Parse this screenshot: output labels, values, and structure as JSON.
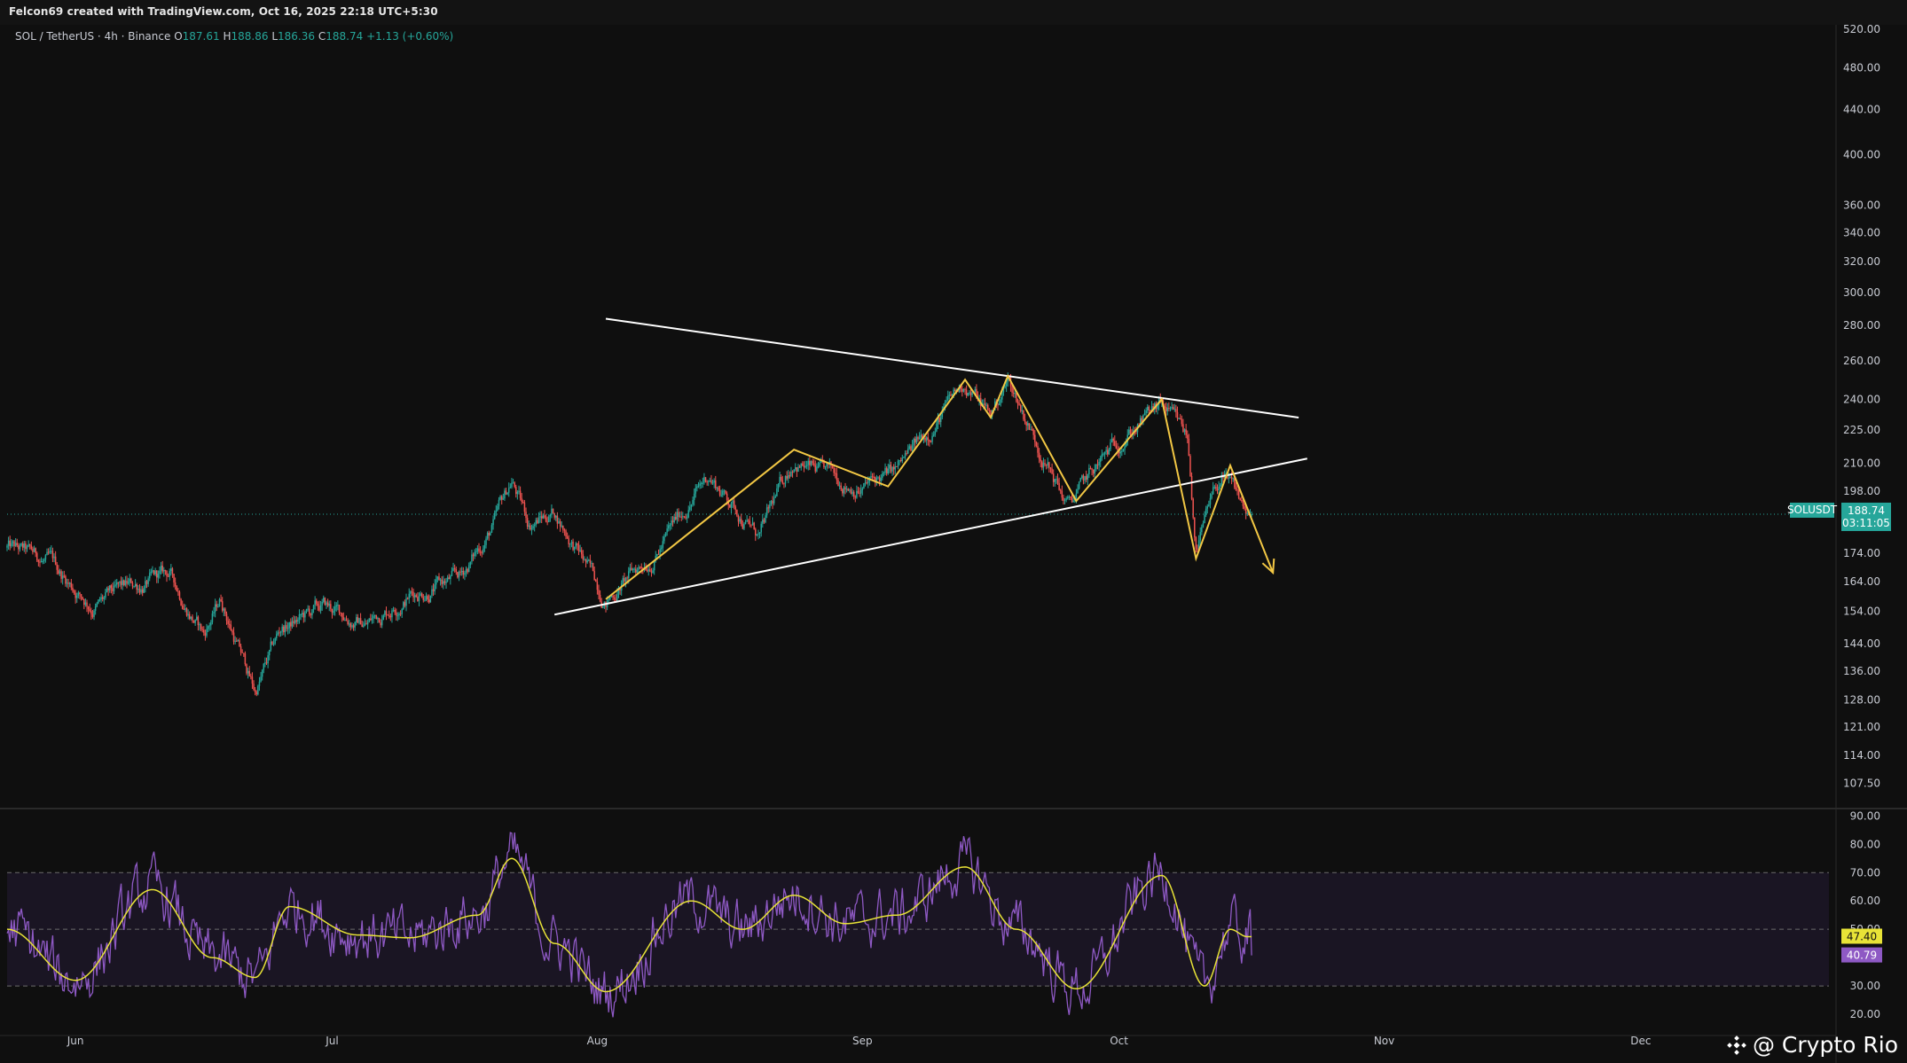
{
  "header": {
    "credit": "Felcon69 created with TradingView.com, Oct 16, 2025 22:18 UTC+5:30"
  },
  "symbol": {
    "name": "SOL / TetherUS · 4h · Binance",
    "open_label": "O",
    "open": "187.61",
    "high_label": "H",
    "high": "188.86",
    "low_label": "L",
    "low": "186.36",
    "close_label": "C",
    "close": "188.74",
    "change": "+1.13 (+0.60%)"
  },
  "price_badge": {
    "ticker": "SOLUSDT",
    "price": "188.74",
    "countdown": "03:11:05"
  },
  "rsi_badges": {
    "ma": "47.40",
    "rsi": "40.79"
  },
  "watermark": {
    "text": "@ Crypto Rio",
    "icon": "binance-square-icon"
  },
  "colors": {
    "background": "#0f0f0f",
    "up": "#26a69a",
    "down": "#ef5350",
    "pattern": "#f2c744",
    "trendline": "#ffffff",
    "rsi": "#8e59c4",
    "rsi_ma": "#e8e337",
    "rsi_band": "#1a1523",
    "price_badge": "#26a69a"
  },
  "chart_data": [
    {
      "type": "candlestick",
      "title": "SOL / TetherUS · 4h · Binance",
      "scale": "log",
      "x_labels": [
        "Jun",
        "Jul",
        "Aug",
        "Sep",
        "Oct",
        "Nov",
        "Dec"
      ],
      "y_ticks": [
        520,
        480,
        440,
        400,
        360,
        340,
        320,
        300,
        280,
        260,
        240,
        225,
        210,
        198,
        174,
        164,
        154,
        144,
        136,
        128,
        121,
        114,
        107.5
      ],
      "ylim": [
        102,
        525
      ],
      "current_price": 188.74,
      "price_path_anchors": [
        {
          "date": "2025-05-24",
          "price": 176
        },
        {
          "date": "2025-05-29",
          "price": 170
        },
        {
          "date": "2025-06-03",
          "price": 156
        },
        {
          "date": "2025-06-08",
          "price": 162
        },
        {
          "date": "2025-06-12",
          "price": 166
        },
        {
          "date": "2025-06-16",
          "price": 147
        },
        {
          "date": "2025-06-18",
          "price": 158
        },
        {
          "date": "2025-06-22",
          "price": 130
        },
        {
          "date": "2025-06-25",
          "price": 148
        },
        {
          "date": "2025-06-30",
          "price": 155
        },
        {
          "date": "2025-07-05",
          "price": 150
        },
        {
          "date": "2025-07-10",
          "price": 160
        },
        {
          "date": "2025-07-16",
          "price": 165
        },
        {
          "date": "2025-07-20",
          "price": 185
        },
        {
          "date": "2025-07-22",
          "price": 202
        },
        {
          "date": "2025-07-24",
          "price": 185
        },
        {
          "date": "2025-07-27",
          "price": 190
        },
        {
          "date": "2025-08-02",
          "price": 158
        },
        {
          "date": "2025-08-08",
          "price": 175
        },
        {
          "date": "2025-08-14",
          "price": 205
        },
        {
          "date": "2025-08-20",
          "price": 180
        },
        {
          "date": "2025-08-24",
          "price": 212
        },
        {
          "date": "2025-08-27",
          "price": 205
        },
        {
          "date": "2025-09-01",
          "price": 200
        },
        {
          "date": "2025-09-05",
          "price": 206
        },
        {
          "date": "2025-09-13",
          "price": 248
        },
        {
          "date": "2025-09-16",
          "price": 232
        },
        {
          "date": "2025-09-18",
          "price": 250
        },
        {
          "date": "2025-09-25",
          "price": 192
        },
        {
          "date": "2025-10-02",
          "price": 225
        },
        {
          "date": "2025-10-06",
          "price": 236
        },
        {
          "date": "2025-10-09",
          "price": 220
        },
        {
          "date": "2025-10-10",
          "price": 176
        },
        {
          "date": "2025-10-13",
          "price": 204
        },
        {
          "date": "2025-10-16",
          "price": 188.74
        }
      ],
      "annotations": {
        "upper_trendline": [
          {
            "date": "2025-08-02",
            "price": 284
          },
          {
            "date": "2025-10-22",
            "price": 231
          }
        ],
        "lower_trendline": [
          {
            "date": "2025-07-27",
            "price": 153
          },
          {
            "date": "2025-10-23",
            "price": 212
          }
        ],
        "zigzag": [
          {
            "date": "2025-08-02",
            "price": 158
          },
          {
            "date": "2025-08-24",
            "price": 216
          },
          {
            "date": "2025-09-04",
            "price": 200
          },
          {
            "date": "2025-09-13",
            "price": 250
          },
          {
            "date": "2025-09-16",
            "price": 231
          },
          {
            "date": "2025-09-18",
            "price": 252
          },
          {
            "date": "2025-09-26",
            "price": 194
          },
          {
            "date": "2025-10-06",
            "price": 240
          },
          {
            "date": "2025-10-10",
            "price": 172
          },
          {
            "date": "2025-10-14",
            "price": 209
          },
          {
            "date": "2025-10-19",
            "price": 167
          }
        ]
      }
    },
    {
      "type": "line",
      "title": "",
      "series": [
        {
          "name": "",
          "values_desc": "RSI oscillation"
        },
        {
          "name": "",
          "values_desc": "RSI moving average"
        }
      ],
      "y_ticks": [
        90,
        80,
        70,
        60,
        50,
        40,
        30,
        20
      ],
      "ylim": [
        15,
        92
      ],
      "band": [
        30,
        70
      ],
      "midline": 50,
      "last_rsi": 40.79,
      "last_ma": 47.4,
      "rsi_ma_anchors": [
        {
          "date": "2025-05-24",
          "value": 50
        },
        {
          "date": "2025-06-01",
          "value": 32
        },
        {
          "date": "2025-06-10",
          "value": 64
        },
        {
          "date": "2025-06-17",
          "value": 40
        },
        {
          "date": "2025-06-22",
          "value": 33
        },
        {
          "date": "2025-06-26",
          "value": 58
        },
        {
          "date": "2025-07-04",
          "value": 48
        },
        {
          "date": "2025-07-10",
          "value": 47
        },
        {
          "date": "2025-07-18",
          "value": 55
        },
        {
          "date": "2025-07-22",
          "value": 75
        },
        {
          "date": "2025-07-27",
          "value": 45
        },
        {
          "date": "2025-08-02",
          "value": 28
        },
        {
          "date": "2025-08-12",
          "value": 60
        },
        {
          "date": "2025-08-18",
          "value": 50
        },
        {
          "date": "2025-08-24",
          "value": 62
        },
        {
          "date": "2025-08-30",
          "value": 52
        },
        {
          "date": "2025-09-05",
          "value": 55
        },
        {
          "date": "2025-09-13",
          "value": 72
        },
        {
          "date": "2025-09-19",
          "value": 50
        },
        {
          "date": "2025-09-26",
          "value": 29
        },
        {
          "date": "2025-10-06",
          "value": 69
        },
        {
          "date": "2025-10-11",
          "value": 30
        },
        {
          "date": "2025-10-14",
          "value": 50
        },
        {
          "date": "2025-10-16",
          "value": 47.4
        }
      ]
    }
  ]
}
